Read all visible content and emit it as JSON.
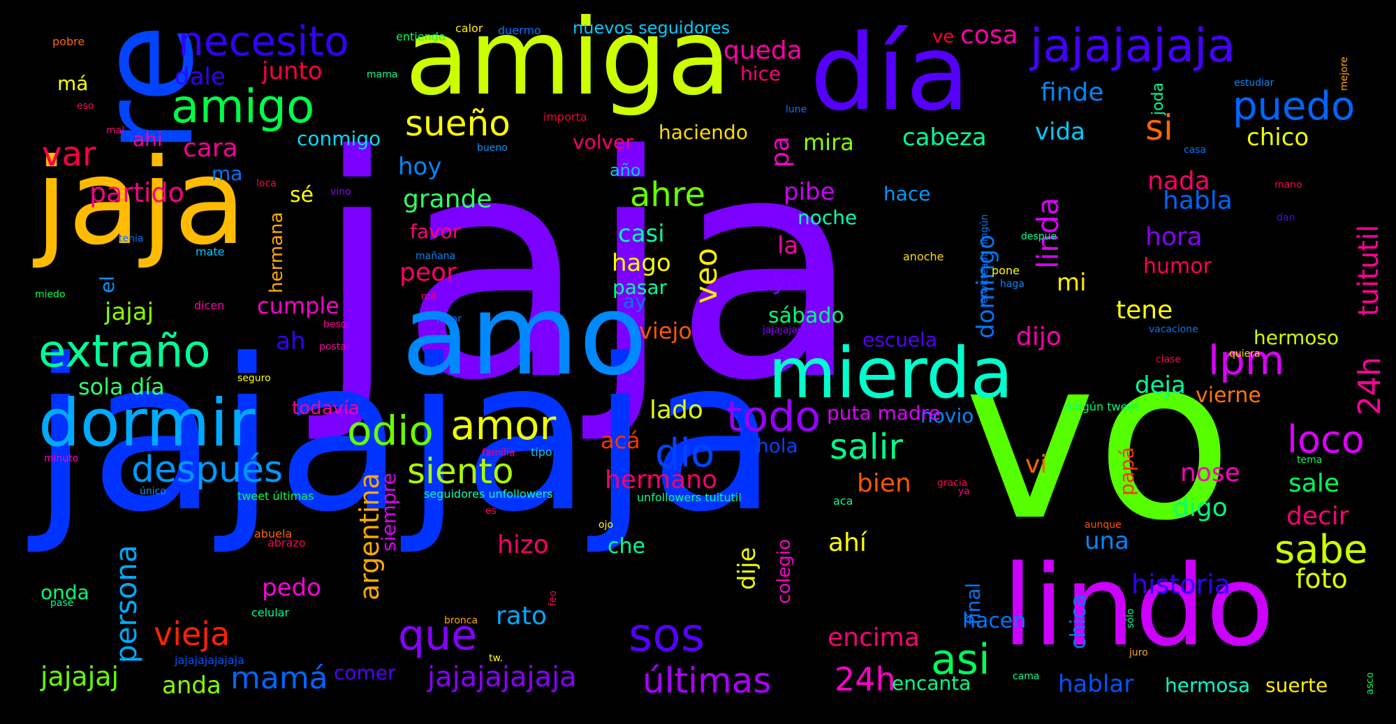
{
  "words": [
    {
      "text": "jaja",
      "color": "#7B00FF"
    },
    {
      "text": "jajajaja",
      "color": "#0033FF"
    },
    {
      "text": "vo",
      "color": "#55FF00"
    },
    {
      "text": "jaja",
      "color": "#FFBB00"
    },
    {
      "text": "re",
      "color": "#0044FF"
    },
    {
      "text": "amiga",
      "color": "#CCFF00"
    },
    {
      "text": "día",
      "color": "#5500FF"
    },
    {
      "text": "amo",
      "color": "#0088FF"
    },
    {
      "text": "lindo",
      "color": "#CC00FF"
    },
    {
      "text": "mierda",
      "color": "#00FFCC"
    },
    {
      "text": "dormir",
      "color": "#00AAFF"
    },
    {
      "text": "jajajajaja",
      "color": "#4400FF"
    },
    {
      "text": "necesito",
      "color": "#3300FF"
    },
    {
      "text": "amigo",
      "color": "#00FF44"
    },
    {
      "text": "extraño",
      "color": "#00FF99"
    },
    {
      "text": "después",
      "color": "#0099FF"
    },
    {
      "text": "odio",
      "color": "#66FF00"
    },
    {
      "text": "amor",
      "color": "#EEFF00"
    },
    {
      "text": "todo",
      "color": "#9900FF"
    },
    {
      "text": "siento",
      "color": "#AAFF00"
    },
    {
      "text": "que",
      "color": "#8800FF"
    },
    {
      "text": "sos",
      "color": "#5500FF"
    },
    {
      "text": "dio",
      "color": "#0044FF"
    },
    {
      "text": "salir",
      "color": "#00FF88"
    },
    {
      "text": "lpm",
      "color": "#DD00FF"
    },
    {
      "text": "loco",
      "color": "#DD00FF"
    },
    {
      "text": "puedo",
      "color": "#0066FF"
    },
    {
      "text": "sueño",
      "color": "#FFFF00"
    },
    {
      "text": "queda",
      "color": "#FF00AA"
    },
    {
      "text": "ahre",
      "color": "#66FF00"
    },
    {
      "text": "veo",
      "color": "#FFEE00"
    },
    {
      "text": "partido",
      "color": "#FF0088"
    },
    {
      "text": "var",
      "color": "#FF0044"
    },
    {
      "text": "cara",
      "color": "#FF0099"
    },
    {
      "text": "vieja",
      "color": "#FF2200"
    },
    {
      "text": "mamá",
      "color": "#0066FF"
    },
    {
      "text": "últimas",
      "color": "#AA00FF"
    },
    {
      "text": "24h",
      "color": "#FF00CC"
    },
    {
      "text": "asi",
      "color": "#00FF55"
    },
    {
      "text": "sabe",
      "color": "#CCFF00"
    },
    {
      "text": "jajajajajaja",
      "color": "#8800FF"
    },
    {
      "text": "jajajaj",
      "color": "#66FF00"
    },
    {
      "text": "persona",
      "color": "#00AAFF"
    },
    {
      "text": "argentina",
      "color": "#FFAA00"
    },
    {
      "text": "tuitutil",
      "color": "#FF0099"
    },
    {
      "text": "24h",
      "color": "#FF0099"
    },
    {
      "text": "linda",
      "color": "#DD00FF"
    },
    {
      "text": "domingo",
      "color": "#0077FF"
    },
    {
      "text": "si",
      "color": "#FF6600"
    },
    {
      "text": "finde",
      "color": "#0088FF"
    },
    {
      "text": "cosa",
      "color": "#FF00AA"
    },
    {
      "text": "ve",
      "color": "#FF0033"
    },
    {
      "text": "chico",
      "color": "#EEFF00"
    },
    {
      "text": "vida",
      "color": "#00CCFF"
    },
    {
      "text": "cabeza",
      "color": "#00FF99"
    },
    {
      "text": "mira",
      "color": "#88FF00"
    },
    {
      "text": "haciendo",
      "color": "#FFDD00"
    },
    {
      "text": "volver",
      "color": "#FF0066"
    },
    {
      "text": "hice",
      "color": "#FF0077"
    },
    {
      "text": "conmigo",
      "color": "#00DDFF"
    },
    {
      "text": "ahi",
      "color": "#FF0099"
    },
    {
      "text": "hoy",
      "color": "#0088FF"
    },
    {
      "text": "grande",
      "color": "#33FF66"
    },
    {
      "text": "junto",
      "color": "#FF0044"
    },
    {
      "text": "dale",
      "color": "#3300FF"
    },
    {
      "text": "má",
      "color": "#FFFF00"
    },
    {
      "text": "pa",
      "color": "#FF00CC"
    },
    {
      "text": "pibe",
      "color": "#CC00FF"
    },
    {
      "text": "noche",
      "color": "#00FFBB"
    },
    {
      "text": "hace",
      "color": "#0099FF"
    },
    {
      "text": "nada",
      "color": "#FF0066"
    },
    {
      "text": "habla",
      "color": "#0066FF"
    },
    {
      "text": "hora",
      "color": "#8800FF"
    },
    {
      "text": "humor",
      "color": "#FF0055"
    },
    {
      "text": "mi",
      "color": "#FFEE00"
    },
    {
      "text": "tene",
      "color": "#FFFF00"
    },
    {
      "text": "dijo",
      "color": "#FF00AA"
    },
    {
      "text": "deja",
      "color": "#00FF99"
    },
    {
      "text": "vierne",
      "color": "#FF7700"
    },
    {
      "text": "hermoso",
      "color": "#CCFF00"
    },
    {
      "text": "novio",
      "color": "#0088FF"
    },
    {
      "text": "escuela",
      "color": "#5500FF"
    },
    {
      "text": "sábado",
      "color": "#00FF77"
    },
    {
      "text": "puta madre",
      "color": "#DD00FF"
    },
    {
      "text": "lado",
      "color": "#DDFF00"
    },
    {
      "text": "acá",
      "color": "#FF3300"
    },
    {
      "text": "hola",
      "color": "#0044FF"
    },
    {
      "text": "hermano",
      "color": "#FF0066"
    },
    {
      "text": "bien",
      "color": "#FF5500"
    },
    {
      "text": "vi",
      "color": "#FF6600"
    },
    {
      "text": "nose",
      "color": "#FF00BB"
    },
    {
      "text": "sale",
      "color": "#00FF55"
    },
    {
      "text": "decir",
      "color": "#FF0077"
    },
    {
      "text": "digo",
      "color": "#00FF77"
    },
    {
      "text": "foto",
      "color": "#DDFF00"
    },
    {
      "text": "historia",
      "color": "#3300FF"
    },
    {
      "text": "una",
      "color": "#0088FF"
    },
    {
      "text": "ahí",
      "color": "#FFFF00"
    },
    {
      "text": "hizo",
      "color": "#FF0066"
    },
    {
      "text": "che",
      "color": "#00FF99"
    },
    {
      "text": "rato",
      "color": "#00AAFF"
    },
    {
      "text": "dije",
      "color": "#EEFF00"
    },
    {
      "text": "colegio",
      "color": "#FF00CC"
    },
    {
      "text": "final",
      "color": "#0077FF"
    },
    {
      "text": "chica",
      "color": "#0077FF"
    },
    {
      "text": "papá",
      "color": "#FF3300"
    },
    {
      "text": "hacen",
      "color": "#0077FF"
    },
    {
      "text": "encima",
      "color": "#FF0077"
    },
    {
      "text": "encanta",
      "color": "#00FF88"
    },
    {
      "text": "hablar",
      "color": "#0055FF"
    },
    {
      "text": "hermosa",
      "color": "#00FFCC"
    },
    {
      "text": "suerte",
      "color": "#FFEE00"
    },
    {
      "text": "anda",
      "color": "#88FF00"
    },
    {
      "text": "comer",
      "color": "#5500FF"
    },
    {
      "text": "pedo",
      "color": "#FF00DD"
    },
    {
      "text": "onda",
      "color": "#00FF77"
    },
    {
      "text": "siempre",
      "color": "#DD00FF"
    },
    {
      "text": "jajaj",
      "color": "#88FF00"
    },
    {
      "text": "sola día",
      "color": "#33FF66"
    },
    {
      "text": "todavía",
      "color": "#FF0099"
    },
    {
      "text": "ah",
      "color": "#3300FF"
    },
    {
      "text": "cumple",
      "color": "#FF00CC"
    },
    {
      "text": "sé",
      "color": "#FFFF00"
    },
    {
      "text": "hermana",
      "color": "#FFAA00"
    },
    {
      "text": "el",
      "color": "#0099FF"
    },
    {
      "text": "ma",
      "color": "#0077FF"
    },
    {
      "text": "viejo",
      "color": "#FF5500"
    },
    {
      "text": "peor",
      "color": "#FF0066"
    },
    {
      "text": "favor",
      "color": "#FF0077"
    },
    {
      "text": "casi",
      "color": "#00FFAA"
    },
    {
      "text": "hago",
      "color": "#FFFF00"
    },
    {
      "text": "pasar",
      "color": "#00FF99"
    },
    {
      "text": "ay",
      "color": "#0077FF"
    },
    {
      "text": "año",
      "color": "#00CCFF"
    },
    {
      "text": "la",
      "color": "#FF00AA"
    },
    {
      "text": "yo",
      "color": "#8800FF"
    },
    {
      "text": "nuevos seguidores",
      "color": "#00CCFF"
    },
    {
      "text": "duermo",
      "color": "#0077FF"
    },
    {
      "text": "calor",
      "color": "#FFEE00"
    },
    {
      "text": "entiendo",
      "color": "#00FF55"
    },
    {
      "text": "pobre",
      "color": "#FF6600"
    },
    {
      "text": "mama",
      "color": "#00FF99"
    },
    {
      "text": "eso",
      "color": "#FF0066"
    },
    {
      "text": "mal",
      "color": "#FF0077"
    },
    {
      "text": "importa",
      "color": "#FF0033"
    },
    {
      "text": "bueno",
      "color": "#0099FF"
    },
    {
      "text": "lune",
      "color": "#0077FF"
    },
    {
      "text": "joda",
      "color": "#00FF99"
    },
    {
      "text": "estudiar",
      "color": "#0088FF"
    },
    {
      "text": "mejore",
      "color": "#FFAA00"
    },
    {
      "text": "casa",
      "color": "#0077FF"
    },
    {
      "text": "mano",
      "color": "#FF0055"
    },
    {
      "text": "despue",
      "color": "#00FF99"
    },
    {
      "text": "retwitteado ningún",
      "color": "#0077FF"
    },
    {
      "text": "dan",
      "color": "#5500FF"
    },
    {
      "text": "anoche",
      "color": "#FFDD00"
    },
    {
      "text": "pone",
      "color": "#FFFF00"
    },
    {
      "text": "haga",
      "color": "#0088FF"
    },
    {
      "text": "vacacione",
      "color": "#0077FF"
    },
    {
      "text": "clase",
      "color": "#FF0055"
    },
    {
      "text": "quiera",
      "color": "#FFDD00"
    },
    {
      "text": "ningún tweet",
      "color": "#00FF77"
    },
    {
      "text": "tema",
      "color": "#00FF55"
    },
    {
      "text": "jajajajaj",
      "color": "#8800FF"
    },
    {
      "text": "loca",
      "color": "#FF0066"
    },
    {
      "text": "vino",
      "color": "#8800FF"
    },
    {
      "text": "tenia",
      "color": "#0077FF"
    },
    {
      "text": "mate",
      "color": "#00CCFF"
    },
    {
      "text": "miedo",
      "color": "#00FF55"
    },
    {
      "text": "dicen",
      "color": "#FF00AA"
    },
    {
      "text": "mañana",
      "color": "#0088FF"
    },
    {
      "text": "mil",
      "color": "#FF0077"
    },
    {
      "text": "jugar",
      "color": "#0077FF"
    },
    {
      "text": "beso",
      "color": "#FF0099"
    },
    {
      "text": "posta",
      "color": "#FF00AA"
    },
    {
      "text": "seguro",
      "color": "#FFFF00"
    },
    {
      "text": "minuto",
      "color": "#FF00CC"
    },
    {
      "text": "único",
      "color": "#0099FF"
    },
    {
      "text": "familia",
      "color": "#FF0077"
    },
    {
      "text": "tipo",
      "color": "#00CCFF"
    },
    {
      "text": "tweet últimas",
      "color": "#00FF55"
    },
    {
      "text": "seguidores unfollowers",
      "color": "#00FFBB"
    },
    {
      "text": "unfollowers tuitutil",
      "color": "#00FF99"
    },
    {
      "text": "gracia",
      "color": "#FF0055"
    },
    {
      "text": "ya",
      "color": "#FF0077"
    },
    {
      "text": "aca",
      "color": "#00FF99"
    },
    {
      "text": "es",
      "color": "#FF0055"
    },
    {
      "text": "ojo",
      "color": "#FFFF00"
    },
    {
      "text": "abuela",
      "color": "#FF6600"
    },
    {
      "text": "abrazo",
      "color": "#FF0055"
    },
    {
      "text": "pase",
      "color": "#00FF99"
    },
    {
      "text": "celular",
      "color": "#00FF99"
    },
    {
      "text": "bronca",
      "color": "#FFAA00"
    },
    {
      "text": "feo",
      "color": "#FF0055"
    },
    {
      "text": "jajajajajajaja",
      "color": "#0055FF"
    },
    {
      "text": "tw.",
      "color": "#FFFF00"
    },
    {
      "text": "juro",
      "color": "#FFAA00"
    },
    {
      "text": "cama",
      "color": "#00FF99"
    },
    {
      "text": "aunque",
      "color": "#FF5500"
    },
    {
      "text": "sólo",
      "color": "#00FF99"
    },
    {
      "text": "asco",
      "color": "#00FF55"
    }
  ]
}
